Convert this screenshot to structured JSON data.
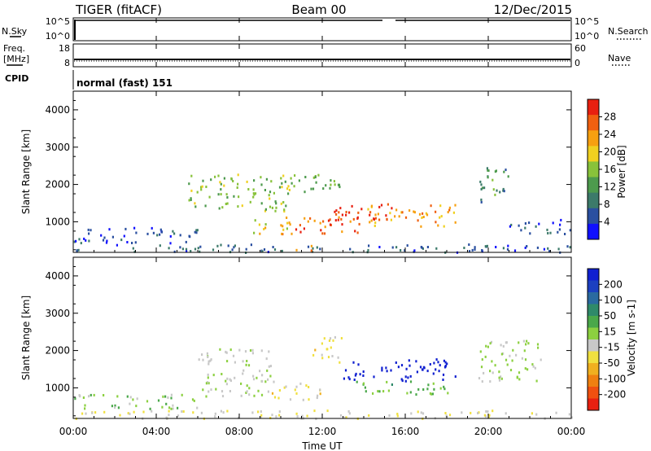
{
  "header": {
    "station": "TIGER (fitACF)",
    "beam": "Beam 00",
    "date": "12/Dec/2015"
  },
  "strips": {
    "nsky_label": "N.Sky",
    "nsearch_label": "N.Search",
    "nsky_ticks": [
      "10^5",
      "10^0"
    ],
    "freq_label_top": "Freq.",
    "freq_label_unit": "[MHz]",
    "freq_ticks": [
      "18",
      "8"
    ],
    "nave_label": "Nave",
    "nave_ticks": [
      "60",
      "0"
    ],
    "cpid_label": "CPID",
    "cpid_text": "normal (fast) 151"
  },
  "axes": {
    "ylabel": "Slant Range [km]",
    "xlabel": "Time UT",
    "xticks": [
      "00:00",
      "04:00",
      "08:00",
      "12:00",
      "16:00",
      "20:00",
      "00:00"
    ],
    "yticks": [
      "1000",
      "2000",
      "3000",
      "4000"
    ]
  },
  "colorbars": {
    "power": {
      "label": "Power [dB]",
      "ticks": [
        "4",
        "8",
        "12",
        "16",
        "20",
        "24",
        "28"
      ],
      "colors": [
        "#1010ff",
        "#2a4fa0",
        "#3c7a6a",
        "#4d9a4d",
        "#88c23a",
        "#f0d020",
        "#f7a010",
        "#f06010",
        "#e82010"
      ]
    },
    "velocity": {
      "label": "Velocity [m s-1]",
      "ticks": [
        "200",
        "100",
        "50",
        "15",
        "-15",
        "-50",
        "-100",
        "-200"
      ],
      "colors": [
        "#1020d0",
        "#1c40c0",
        "#2a6aa0",
        "#2f8a6a",
        "#4aa84a",
        "#8cd040",
        "#c8c8c8",
        "#f0e040",
        "#f0b020",
        "#f08010",
        "#f05010",
        "#e82010"
      ]
    }
  },
  "chart_data": [
    {
      "type": "heatmap",
      "panel": "power",
      "x_axis": "Time UT (hours)",
      "xlim": [
        0,
        24
      ],
      "ylim": [
        180,
        4500
      ],
      "y_unit": "km",
      "zlim": [
        0,
        30
      ],
      "z_unit": "dB",
      "regions": [
        {
          "t0": 0.0,
          "t1": 24.0,
          "r0": 200,
          "r1": 420,
          "z": 6
        },
        {
          "t0": 0.0,
          "t1": 6.0,
          "r0": 450,
          "r1": 900,
          "z": 5
        },
        {
          "t0": 5.5,
          "t1": 10.5,
          "r0": 1300,
          "r1": 2300,
          "z": 14
        },
        {
          "t0": 8.5,
          "t1": 10.5,
          "r0": 700,
          "r1": 1100,
          "z": 18
        },
        {
          "t0": 10.0,
          "t1": 14.0,
          "r0": 700,
          "r1": 1200,
          "z": 26
        },
        {
          "t0": 12.5,
          "t1": 15.5,
          "r0": 1000,
          "r1": 1500,
          "z": 27
        },
        {
          "t0": 14.0,
          "t1": 18.5,
          "r0": 900,
          "r1": 1500,
          "z": 22
        },
        {
          "t0": 10.0,
          "t1": 13.0,
          "r0": 1800,
          "r1": 2300,
          "z": 14
        },
        {
          "t0": 10.5,
          "t1": 11.5,
          "r0": 200,
          "r1": 400,
          "z": 22
        },
        {
          "t0": 19.5,
          "t1": 21.0,
          "r0": 1500,
          "r1": 2500,
          "z": 10
        },
        {
          "t0": 21.0,
          "t1": 24.0,
          "r0": 700,
          "r1": 1100,
          "z": 5
        }
      ]
    },
    {
      "type": "heatmap",
      "panel": "velocity",
      "x_axis": "Time UT (hours)",
      "xlim": [
        0,
        24
      ],
      "ylim": [
        180,
        4500
      ],
      "y_unit": "km",
      "zlim": [
        -200,
        200
      ],
      "z_unit": "m s-1",
      "regions": [
        {
          "t0": 0.0,
          "t1": 24.0,
          "r0": 200,
          "r1": 420,
          "v": -30
        },
        {
          "t0": 6.0,
          "t1": 9.5,
          "r0": 800,
          "r1": 2100,
          "v": 0
        },
        {
          "t0": 9.5,
          "t1": 12.0,
          "r0": 700,
          "r1": 1200,
          "v": -40
        },
        {
          "t0": 11.5,
          "t1": 13.0,
          "r0": 1700,
          "r1": 2400,
          "v": -40
        },
        {
          "t0": 13.0,
          "t1": 18.5,
          "r0": 1200,
          "r1": 1800,
          "v": 200
        },
        {
          "t0": 13.5,
          "t1": 18.5,
          "r0": 850,
          "r1": 1200,
          "v": 40
        },
        {
          "t0": 19.5,
          "t1": 22.5,
          "r0": 1200,
          "r1": 2300,
          "v": 0
        },
        {
          "t0": 0.0,
          "t1": 6.0,
          "r0": 450,
          "r1": 850,
          "v": 20
        }
      ]
    }
  ]
}
